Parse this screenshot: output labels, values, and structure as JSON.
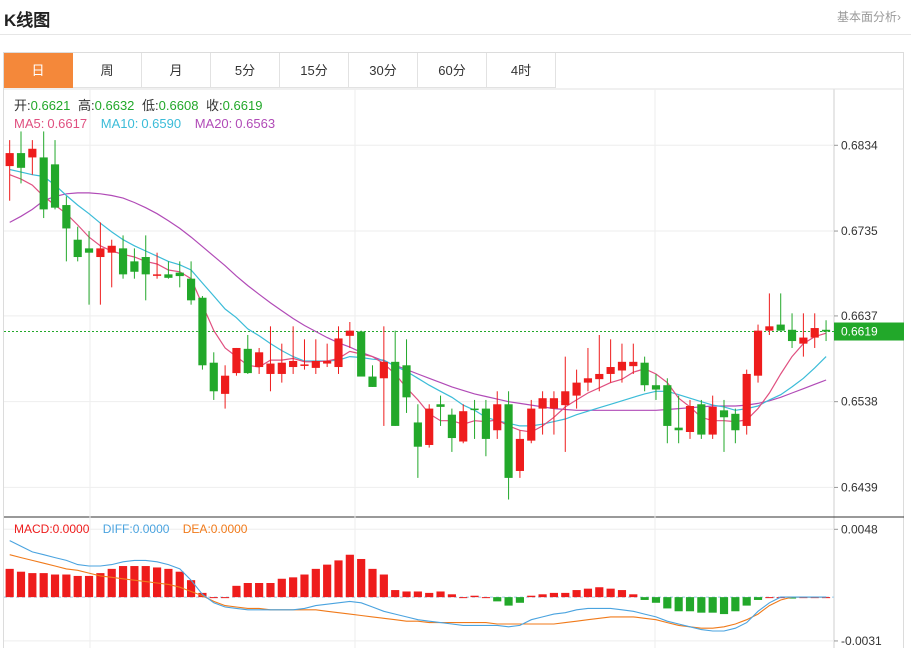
{
  "header": {
    "title": "K线图",
    "more_link": "基本面分析›"
  },
  "tabs": [
    {
      "label": "日",
      "active": true
    },
    {
      "label": "周",
      "active": false
    },
    {
      "label": "月",
      "active": false
    },
    {
      "label": "5分",
      "active": false
    },
    {
      "label": "15分",
      "active": false
    },
    {
      "label": "30分",
      "active": false
    },
    {
      "label": "60分",
      "active": false
    },
    {
      "label": "4时",
      "active": false
    }
  ],
  "ohlc_info": {
    "open_label": "开:",
    "open": "0.6621",
    "high_label": "高:",
    "high": "0.6632",
    "low_label": "低:",
    "low": "0.6608",
    "close_label": "收:",
    "close": "0.6619"
  },
  "ma_info": {
    "ma5_label": "MA5:",
    "ma5": "0.6617",
    "ma10_label": "MA10:",
    "ma10": "0.6590",
    "ma20_label": "MA20:",
    "ma20": "0.6563"
  },
  "macd_info": {
    "macd_label": "MACD:",
    "macd": "0.0000",
    "diff_label": "DIFF:",
    "diff": "0.0000",
    "dea_label": "DEA:",
    "dea": "0.0000"
  },
  "colors": {
    "up": "#ee1c1c",
    "down": "#22a82a",
    "ma5": "#e05080",
    "ma10": "#3bbcd8",
    "ma20": "#b14bb7",
    "diff": "#4aa3df",
    "dea": "#f07a1a",
    "accent": "#f4883a",
    "price_tag": "#22a82a"
  },
  "chart_data": {
    "type": "candlestick",
    "price_axis": {
      "ticks": [
        "0.6834",
        "0.6735",
        "0.6637",
        "0.6538",
        "0.6439"
      ],
      "ylim": [
        0.6406,
        0.6899
      ]
    },
    "current_price": "0.6619",
    "candles": [
      [
        0.681,
        0.684,
        0.677,
        0.6825
      ],
      [
        0.6825,
        0.685,
        0.679,
        0.6808
      ],
      [
        0.682,
        0.684,
        0.68,
        0.683
      ],
      [
        0.682,
        0.685,
        0.675,
        0.676
      ],
      [
        0.6812,
        0.684,
        0.676,
        0.6762
      ],
      [
        0.6765,
        0.6775,
        0.67,
        0.6738
      ],
      [
        0.6725,
        0.674,
        0.67,
        0.6705
      ],
      [
        0.6715,
        0.6735,
        0.665,
        0.671
      ],
      [
        0.6705,
        0.6745,
        0.665,
        0.6715
      ],
      [
        0.671,
        0.6725,
        0.667,
        0.6718
      ],
      [
        0.6715,
        0.673,
        0.668,
        0.6685
      ],
      [
        0.67,
        0.6715,
        0.668,
        0.6688
      ],
      [
        0.6705,
        0.673,
        0.6655,
        0.6685
      ],
      [
        0.6685,
        0.671,
        0.668,
        0.6685
      ],
      [
        0.6685,
        0.67,
        0.668,
        0.6681
      ],
      [
        0.6687,
        0.67,
        0.667,
        0.6683
      ],
      [
        0.668,
        0.67,
        0.665,
        0.6655
      ],
      [
        0.6658,
        0.666,
        0.6575,
        0.658
      ],
      [
        0.6583,
        0.6595,
        0.654,
        0.655
      ],
      [
        0.6547,
        0.658,
        0.653,
        0.6568
      ],
      [
        0.6571,
        0.66,
        0.6568,
        0.66
      ],
      [
        0.6599,
        0.6615,
        0.657,
        0.6571
      ],
      [
        0.6578,
        0.66,
        0.657,
        0.6595
      ],
      [
        0.657,
        0.6625,
        0.655,
        0.6582
      ],
      [
        0.657,
        0.6605,
        0.656,
        0.6583
      ],
      [
        0.6578,
        0.6625,
        0.657,
        0.6585
      ],
      [
        0.658,
        0.661,
        0.6575,
        0.6581
      ],
      [
        0.6577,
        0.661,
        0.657,
        0.6585
      ],
      [
        0.6582,
        0.6605,
        0.6578,
        0.6585
      ],
      [
        0.6578,
        0.6625,
        0.657,
        0.6611
      ],
      [
        0.6614,
        0.663,
        0.66,
        0.662
      ],
      [
        0.6619,
        0.662,
        0.657,
        0.6567
      ],
      [
        0.6567,
        0.658,
        0.6555,
        0.6555
      ],
      [
        0.6565,
        0.6625,
        0.651,
        0.6584
      ],
      [
        0.6584,
        0.662,
        0.651,
        0.651
      ],
      [
        0.658,
        0.661,
        0.6525,
        0.6543
      ],
      [
        0.6514,
        0.6535,
        0.645,
        0.6486
      ],
      [
        0.6488,
        0.6535,
        0.6485,
        0.653
      ],
      [
        0.6535,
        0.6545,
        0.651,
        0.6532
      ],
      [
        0.6523,
        0.653,
        0.648,
        0.6496
      ],
      [
        0.6492,
        0.6535,
        0.649,
        0.6527
      ],
      [
        0.653,
        0.654,
        0.6495,
        0.6529
      ],
      [
        0.653,
        0.654,
        0.6475,
        0.6495
      ],
      [
        0.6505,
        0.655,
        0.6495,
        0.6535
      ],
      [
        0.6535,
        0.655,
        0.6425,
        0.645
      ],
      [
        0.6458,
        0.6505,
        0.645,
        0.6495
      ],
      [
        0.6493,
        0.654,
        0.649,
        0.653
      ],
      [
        0.653,
        0.655,
        0.65,
        0.6542
      ],
      [
        0.653,
        0.655,
        0.65,
        0.6542
      ],
      [
        0.6534,
        0.659,
        0.648,
        0.655
      ],
      [
        0.6545,
        0.6575,
        0.653,
        0.656
      ],
      [
        0.656,
        0.66,
        0.655,
        0.6565
      ],
      [
        0.6564,
        0.6615,
        0.655,
        0.657
      ],
      [
        0.657,
        0.661,
        0.656,
        0.6578
      ],
      [
        0.6574,
        0.6605,
        0.656,
        0.6584
      ],
      [
        0.6579,
        0.6605,
        0.657,
        0.6584
      ],
      [
        0.6583,
        0.659,
        0.655,
        0.6557
      ],
      [
        0.6557,
        0.657,
        0.654,
        0.6552
      ],
      [
        0.6557,
        0.6565,
        0.649,
        0.651
      ],
      [
        0.6508,
        0.6545,
        0.649,
        0.6505
      ],
      [
        0.6503,
        0.654,
        0.6495,
        0.6533
      ],
      [
        0.6535,
        0.654,
        0.6495,
        0.65
      ],
      [
        0.65,
        0.6545,
        0.6495,
        0.6532
      ],
      [
        0.6528,
        0.654,
        0.648,
        0.652
      ],
      [
        0.6524,
        0.653,
        0.649,
        0.6505
      ],
      [
        0.651,
        0.6575,
        0.65,
        0.657
      ],
      [
        0.6568,
        0.6627,
        0.656,
        0.662
      ],
      [
        0.662,
        0.6663,
        0.6615,
        0.6625
      ],
      [
        0.6627,
        0.6663,
        0.662,
        0.662
      ],
      [
        0.6621,
        0.664,
        0.66,
        0.6608
      ],
      [
        0.6605,
        0.664,
        0.659,
        0.6612
      ],
      [
        0.6612,
        0.664,
        0.66,
        0.6623
      ],
      [
        0.6621,
        0.6632,
        0.6608,
        0.6619
      ]
    ],
    "ma5": [
      0.68,
      0.6795,
      0.6788,
      0.6775,
      0.6765,
      0.6755,
      0.6742,
      0.6728,
      0.6718,
      0.6712,
      0.6708,
      0.6705,
      0.67,
      0.6697,
      0.669,
      0.6688,
      0.668,
      0.665,
      0.662,
      0.66,
      0.659,
      0.658,
      0.6578,
      0.6586,
      0.6586,
      0.6588,
      0.6584,
      0.6584,
      0.6585,
      0.6588,
      0.6596,
      0.6593,
      0.659,
      0.6582,
      0.657,
      0.6554,
      0.654,
      0.6524,
      0.6516,
      0.6516,
      0.6512,
      0.6516,
      0.6515,
      0.6517,
      0.651,
      0.6505,
      0.6503,
      0.651,
      0.652,
      0.6532,
      0.654,
      0.6548,
      0.6554,
      0.656,
      0.6564,
      0.6572,
      0.6576,
      0.657,
      0.656,
      0.6542,
      0.6532,
      0.652,
      0.6516,
      0.6516,
      0.6515,
      0.6517,
      0.653,
      0.6548,
      0.657,
      0.659,
      0.6605,
      0.6613,
      0.6617
    ],
    "ma10": [
      0.6806,
      0.6803,
      0.68,
      0.6798,
      0.6788,
      0.6776,
      0.6765,
      0.6755,
      0.6744,
      0.6734,
      0.6725,
      0.6718,
      0.6712,
      0.6706,
      0.67,
      0.6696,
      0.669,
      0.6675,
      0.666,
      0.6645,
      0.6635,
      0.6622,
      0.6614,
      0.6605,
      0.6597,
      0.659,
      0.6585,
      0.6585,
      0.6585,
      0.6586,
      0.659,
      0.6589,
      0.6587,
      0.6586,
      0.6579,
      0.6573,
      0.6565,
      0.6557,
      0.655,
      0.6543,
      0.6534,
      0.6528,
      0.652,
      0.6516,
      0.6513,
      0.651,
      0.651,
      0.6512,
      0.6515,
      0.6518,
      0.6523,
      0.6527,
      0.6531,
      0.6535,
      0.6539,
      0.6543,
      0.6547,
      0.655,
      0.655,
      0.6546,
      0.6542,
      0.6538,
      0.6534,
      0.6532,
      0.6528,
      0.653,
      0.6533,
      0.654,
      0.6546,
      0.6555,
      0.6565,
      0.6577,
      0.659
    ],
    "ma20": [
      0.6745,
      0.6752,
      0.676,
      0.677,
      0.6775,
      0.6778,
      0.6779,
      0.6779,
      0.6778,
      0.6776,
      0.6773,
      0.6768,
      0.6762,
      0.6755,
      0.6747,
      0.6738,
      0.6728,
      0.6717,
      0.6706,
      0.6695,
      0.6683,
      0.6672,
      0.6662,
      0.6652,
      0.6643,
      0.6634,
      0.6626,
      0.6619,
      0.6612,
      0.6606,
      0.6601,
      0.6595,
      0.659,
      0.6585,
      0.658,
      0.6575,
      0.657,
      0.6565,
      0.656,
      0.6555,
      0.6551,
      0.6547,
      0.6544,
      0.6541,
      0.6538,
      0.6536,
      0.6534,
      0.6532,
      0.653,
      0.6529,
      0.6528,
      0.6528,
      0.6528,
      0.6528,
      0.6528,
      0.6528,
      0.6528,
      0.6528,
      0.6529,
      0.653,
      0.6531,
      0.6532,
      0.6533,
      0.6533,
      0.6533,
      0.6534,
      0.6536,
      0.6539,
      0.6543,
      0.6548,
      0.6553,
      0.6558,
      0.6563
    ],
    "macd_axis": {
      "ticks": [
        "0.0048",
        "-0.0031"
      ],
      "ylim": [
        -0.0036,
        0.0056
      ]
    },
    "macd_hist": [
      0.002,
      0.0018,
      0.0017,
      0.0017,
      0.0016,
      0.0016,
      0.0015,
      0.0015,
      0.0017,
      0.002,
      0.0022,
      0.0022,
      0.0022,
      0.0021,
      0.002,
      0.0018,
      0.0012,
      0.0003,
      0.0,
      0.0,
      0.0008,
      0.001,
      0.001,
      0.001,
      0.0013,
      0.0014,
      0.0016,
      0.002,
      0.0023,
      0.0026,
      0.003,
      0.0027,
      0.002,
      0.0016,
      0.0005,
      0.0004,
      0.0004,
      0.0003,
      0.0004,
      0.0002,
      0.0,
      0.0001,
      0.0,
      -0.0003,
      -0.0006,
      -0.0004,
      0.0001,
      0.0002,
      0.0003,
      0.0003,
      0.0005,
      0.0006,
      0.0007,
      0.0006,
      0.0005,
      0.0002,
      -0.0002,
      -0.0004,
      -0.0008,
      -0.001,
      -0.001,
      -0.0011,
      -0.0011,
      -0.0012,
      -0.001,
      -0.0006,
      -0.0002,
      0.0,
      0.0,
      -0.0001,
      0.0,
      0.0,
      0.0
    ],
    "diff": [
      0.004,
      0.0036,
      0.0032,
      0.003,
      0.0028,
      0.0026,
      0.0023,
      0.0022,
      0.0022,
      0.0023,
      0.0025,
      0.0026,
      0.0026,
      0.0025,
      0.0023,
      0.002,
      0.0012,
      0.0002,
      -0.0004,
      -0.0007,
      -0.0008,
      -0.0009,
      -0.0009,
      -0.0009,
      -0.0009,
      -0.0009,
      -0.0008,
      -0.0006,
      -0.0005,
      -0.0004,
      -0.0003,
      -0.0004,
      -0.0007,
      -0.001,
      -0.0012,
      -0.0014,
      -0.0016,
      -0.0017,
      -0.0018,
      -0.0019,
      -0.002,
      -0.002,
      -0.002,
      -0.002,
      -0.0021,
      -0.002,
      -0.0016,
      -0.0014,
      -0.0012,
      -0.0011,
      -0.0009,
      -0.0008,
      -0.0008,
      -0.0008,
      -0.0009,
      -0.001,
      -0.0012,
      -0.0014,
      -0.0017,
      -0.0019,
      -0.0021,
      -0.0023,
      -0.0024,
      -0.0024,
      -0.0022,
      -0.0018,
      -0.001,
      -0.0004,
      0.0,
      0.0,
      0.0,
      0.0,
      0.0
    ],
    "dea": [
      0.003,
      0.0028,
      0.0026,
      0.0024,
      0.0022,
      0.002,
      0.0019,
      0.0017,
      0.0015,
      0.0014,
      0.0013,
      0.0012,
      0.0011,
      0.001,
      0.0009,
      0.0007,
      0.0004,
      0.0001,
      -0.0003,
      -0.0006,
      -0.0007,
      -0.0008,
      -0.0008,
      -0.0009,
      -0.0009,
      -0.0009,
      -0.0009,
      -0.0009,
      -0.001,
      -0.0011,
      -0.0012,
      -0.0013,
      -0.0014,
      -0.0015,
      -0.0016,
      -0.0017,
      -0.0017,
      -0.0018,
      -0.0018,
      -0.0018,
      -0.0018,
      -0.0018,
      -0.0018,
      -0.0019,
      -0.0019,
      -0.0019,
      -0.0019,
      -0.0019,
      -0.0019,
      -0.0018,
      -0.0017,
      -0.0016,
      -0.0015,
      -0.0014,
      -0.0014,
      -0.0014,
      -0.0015,
      -0.0016,
      -0.0018,
      -0.002,
      -0.0021,
      -0.0022,
      -0.0022,
      -0.0021,
      -0.0019,
      -0.0016,
      -0.0012,
      -0.0006,
      -0.0002,
      0.0,
      0.0,
      0.0,
      0.0
    ]
  }
}
